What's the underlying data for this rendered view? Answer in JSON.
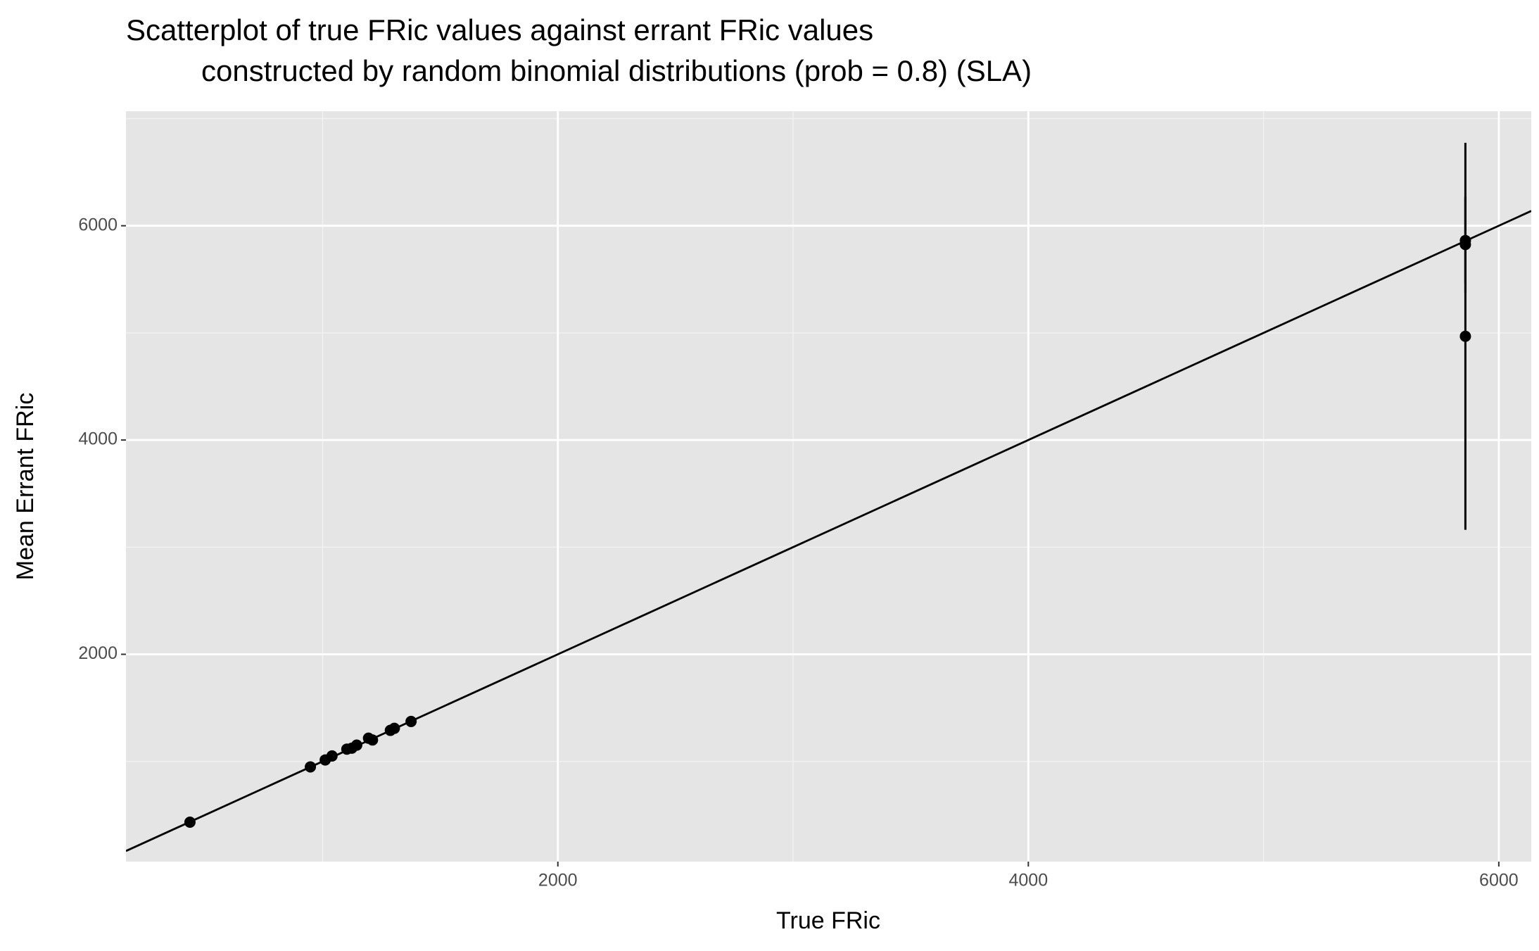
{
  "chart_data": {
    "type": "scatter",
    "title": [
      "Scatterplot of true FRic values against errant FRic values",
      "constructed by random binomial distributions (prob = 0.8) (SLA)"
    ],
    "x_label": "True FRic",
    "y_label": "Mean Errant FRic",
    "x": [
      436,
      948,
      1011,
      1040,
      1103,
      1124,
      1145,
      1195,
      1212,
      1288,
      1305,
      1376,
      5858,
      5858,
      5858
    ],
    "values": [
      433,
      949,
      1014,
      1051,
      1115,
      1124,
      1152,
      1217,
      1200,
      1290,
      1309,
      1373,
      5862,
      5825,
      4968
    ],
    "errors": [
      20,
      20,
      25,
      25,
      30,
      30,
      30,
      40,
      40,
      40,
      40,
      50,
      400,
      450,
      1806
    ],
    "color": "#000000",
    "identity_line": true,
    "xlim": [
      164,
      6138
    ],
    "ylim": [
      65,
      7069
    ],
    "xticks": [
      2000,
      4000,
      6000
    ],
    "yticks": [
      2000,
      4000,
      6000
    ],
    "grid": true
  }
}
